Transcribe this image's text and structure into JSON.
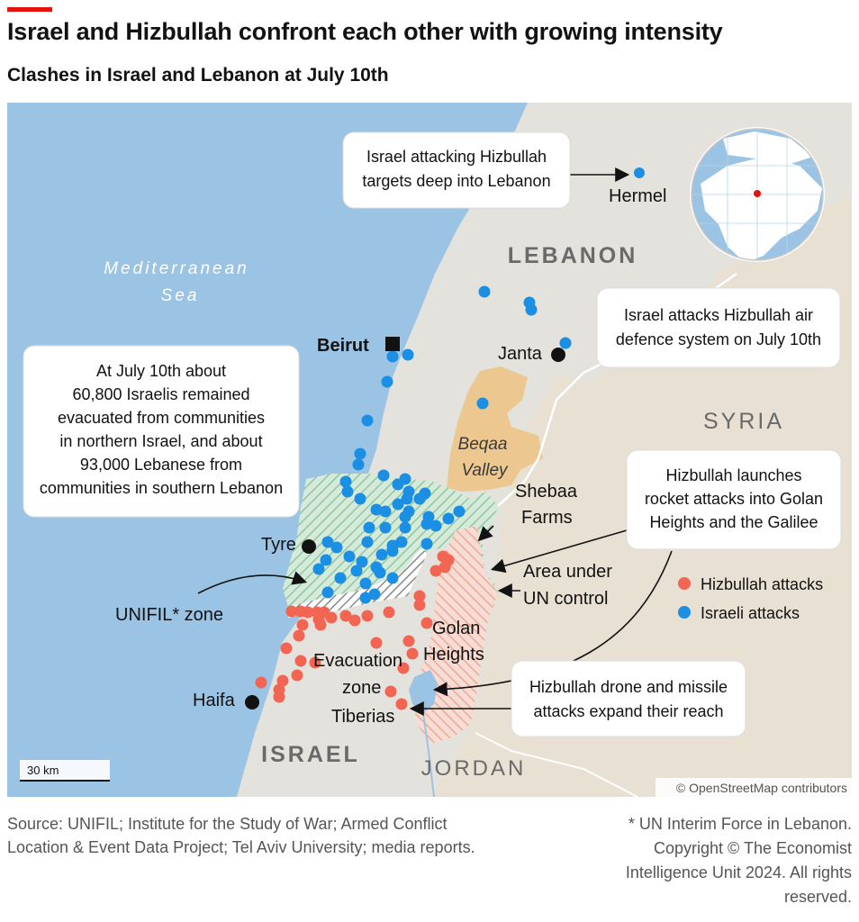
{
  "header": {
    "title": "Israel and Hizbullah confront each other with growing intensity",
    "subtitle": "Clashes in Israel and Lebanon at July 10th"
  },
  "map": {
    "sea_label_1": "Mediterranean",
    "sea_label_2": "Sea",
    "countries": {
      "lebanon": "LEBANON",
      "syria": "SYRIA",
      "israel": "ISRAEL",
      "jordan": "JORDAN"
    },
    "places": {
      "beirut": "Beirut",
      "janta": "Janta",
      "hermel": "Hermel",
      "tyre": "Tyre",
      "haifa": "Haifa",
      "tiberias": "Tiberias",
      "beqaa_1": "Beqaa",
      "beqaa_2": "Valley",
      "shebaa_1": "Shebaa",
      "shebaa_2": "Farms",
      "golan_1": "Golan",
      "golan_2": "Heights",
      "evac_1": "Evacuation",
      "evac_2": "zone",
      "un_area_1": "Area under",
      "un_area_2": "UN control",
      "unifil": "UNIFIL* zone"
    },
    "callouts": {
      "hermel_1": "Israel attacking Hizbullah",
      "hermel_2": "targets deep into Lebanon",
      "janta_1": "Israel attacks Hizbullah air",
      "janta_2": "defence system on July 10th",
      "evac_1": "At July 10th about",
      "evac_2": "60,800 Israelis remained",
      "evac_3": "evacuated from communities",
      "evac_4": "in northern Israel, and about",
      "evac_5": "93,000 Lebanese from",
      "evac_6": "communities in southern Lebanon",
      "rocket_1": "Hizbullah launches",
      "rocket_2": "rocket attacks into Golan",
      "rocket_3": "Heights and the Galilee",
      "drone_1": "Hizbullah drone and missile",
      "drone_2": "attacks expand their reach"
    },
    "legend": {
      "hizbullah": "Hizbullah attacks",
      "israeli": "Israeli attacks",
      "hizbullah_color": "#f26552",
      "israeli_color": "#1b8fe3"
    },
    "scale_label": "30 km",
    "attribution": "© OpenStreetMap contributors",
    "colors": {
      "sea": "#9bc3e3",
      "land": "#e4e2dc",
      "beqaa": "#ecc78f",
      "syria": "#e7e0d3"
    }
  },
  "footer": {
    "source_1": "Source: UNIFIL; Institute for the Study of War; Armed Conflict",
    "source_2": "Location & Event Data Project; Tel Aviv University; media reports.",
    "note_1": "* UN Interim Force in Lebanon.",
    "note_2": "Copyright © The Economist",
    "note_3": "Intelligence Unit 2024. All rights",
    "note_4": "reserved."
  }
}
